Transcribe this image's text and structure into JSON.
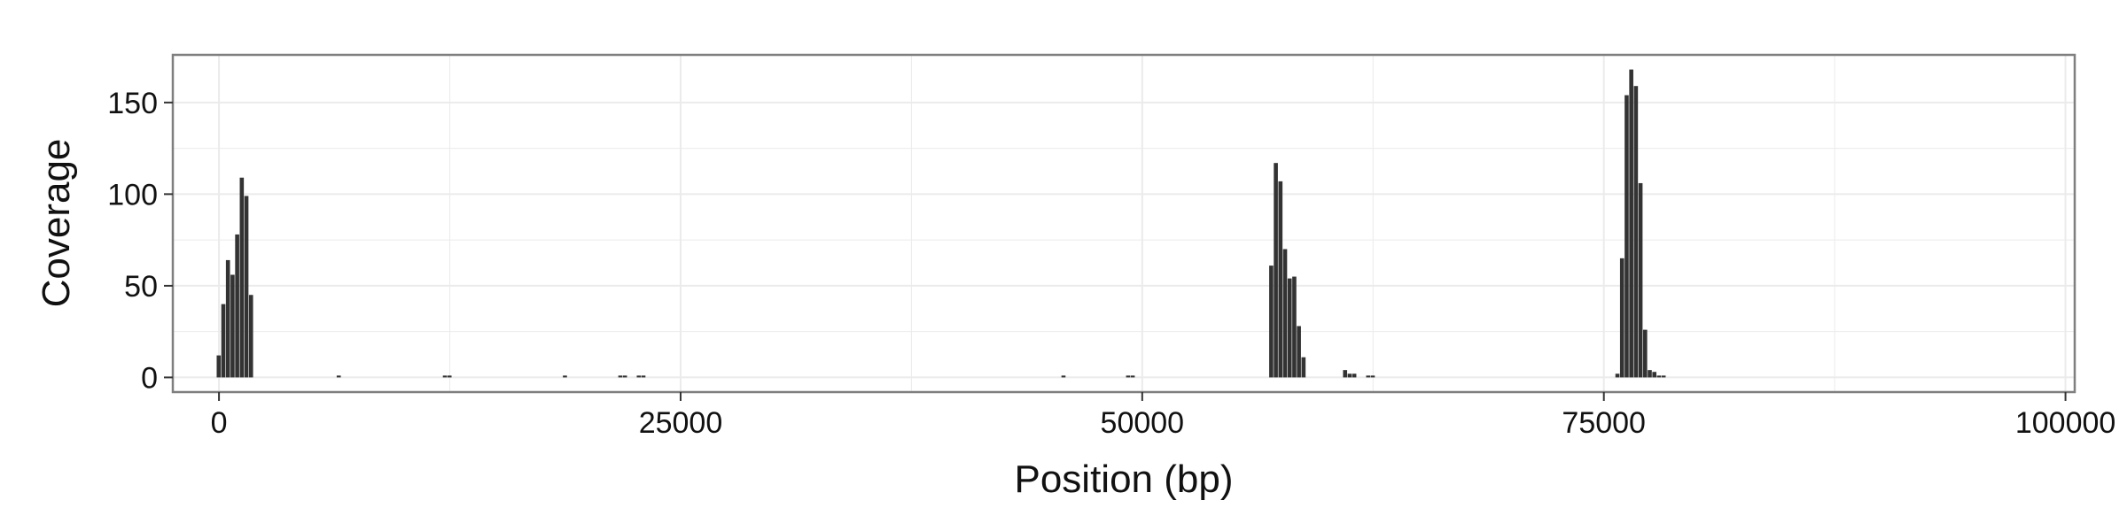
{
  "chart_data": {
    "type": "bar",
    "title": "",
    "xlabel": "Position (bp)",
    "ylabel": "Coverage",
    "xlim": [
      -2500,
      100500
    ],
    "ylim": [
      -8,
      176
    ],
    "x_ticks": [
      0,
      25000,
      50000,
      75000,
      100000
    ],
    "x_tick_labels": [
      "0",
      "25000",
      "50000",
      "75000",
      "100000"
    ],
    "y_ticks": [
      0,
      50,
      100,
      150
    ],
    "y_tick_labels": [
      "0",
      "50",
      "100",
      "150"
    ],
    "grid": true,
    "bin_width": 250,
    "bar_color": "#333333",
    "panel_border_color": "#7f7f7f",
    "grid_color": "#ebebeb",
    "series": [
      {
        "x": [
          0,
          250,
          500,
          750,
          1000,
          1250,
          1500,
          1750,
          6500,
          12250,
          12500,
          18750,
          21750,
          22000,
          22750,
          23000,
          45750,
          49250,
          49500,
          57000,
          57250,
          57500,
          57750,
          58000,
          58250,
          58500,
          58750,
          61000,
          61250,
          61500,
          62250,
          62500,
          75750,
          76000,
          76250,
          76500,
          76750,
          77000,
          77250,
          77500,
          77750,
          78000,
          78250
        ],
        "y": [
          12,
          40,
          64,
          56,
          78,
          109,
          99,
          45,
          1,
          1,
          1,
          1,
          1,
          1,
          1,
          1,
          1,
          1,
          1,
          61,
          117,
          107,
          70,
          54,
          55,
          28,
          11,
          4,
          2,
          2,
          1,
          1,
          2,
          65,
          154,
          168,
          159,
          106,
          26,
          4,
          3,
          1,
          1
        ]
      }
    ]
  }
}
